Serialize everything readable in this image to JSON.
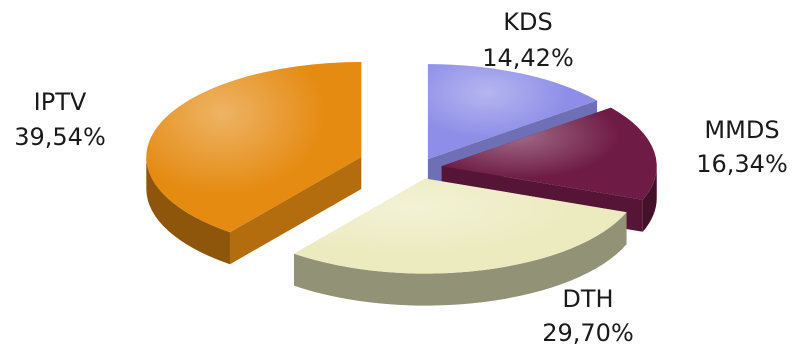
{
  "chart_data": {
    "type": "pie",
    "style": "3d-exploded",
    "slices": [
      {
        "label": "KDS",
        "value": 14.42,
        "value_text": "14,42%",
        "color": "#8e8ee8"
      },
      {
        "label": "MMDS",
        "value": 16.34,
        "value_text": "16,34%",
        "color": "#6e1b45"
      },
      {
        "label": "DTH",
        "value": 29.7,
        "value_text": "29,70%",
        "color": "#ecebc0"
      },
      {
        "label": "IPTV",
        "value": 39.54,
        "value_text": "39,54%",
        "color": "#e58b12"
      }
    ]
  }
}
